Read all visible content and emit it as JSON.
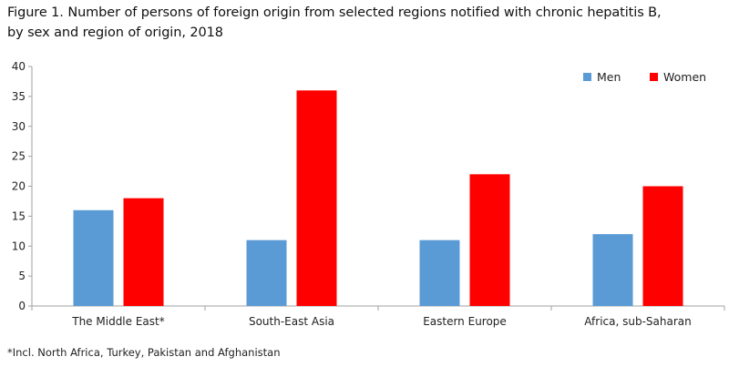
{
  "title_lines": [
    "Figure 1. Number of persons of foreign origin from selected regions notified with chronic hepatitis B,",
    "by sex and region of origin, 2018"
  ],
  "footnote": "*Incl. North Africa, Turkey, Pakistan and Afghanistan",
  "colors": {
    "men": "#5b9bd5",
    "women": "#ff0000",
    "axis": "#a0a0a0"
  },
  "chart_data": {
    "type": "bar",
    "title": "Figure 1. Number of persons of foreign origin from selected regions notified with chronic hepatitis B, by sex and region of origin, 2018",
    "categories": [
      "The Middle East*",
      "South-East Asia",
      "Eastern Europe",
      "Africa, sub-Saharan"
    ],
    "series": [
      {
        "name": "Men",
        "values": [
          16,
          11,
          11,
          12
        ]
      },
      {
        "name": "Women",
        "values": [
          18,
          36,
          22,
          20
        ]
      }
    ],
    "ylim": [
      0,
      40
    ],
    "yticks": [
      0,
      5,
      10,
      15,
      20,
      25,
      30,
      35,
      40
    ],
    "grid": false,
    "legend": "top-right"
  }
}
